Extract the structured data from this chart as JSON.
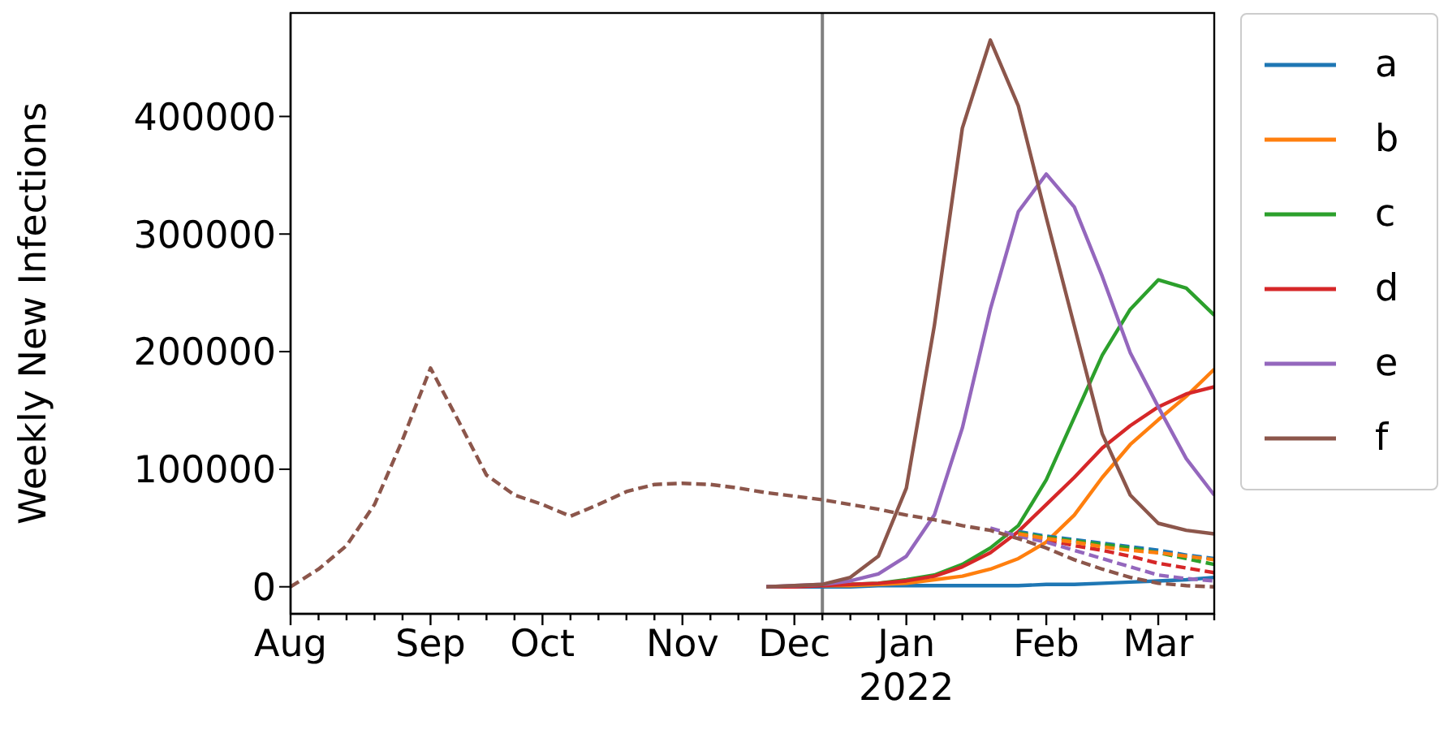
{
  "chart_data": {
    "type": "line",
    "ylabel": "Weekly New Infections",
    "x": [
      "2021-08-01",
      "2021-08-08",
      "2021-08-15",
      "2021-08-22",
      "2021-08-29",
      "2021-09-05",
      "2021-09-12",
      "2021-09-19",
      "2021-09-26",
      "2021-10-03",
      "2021-10-10",
      "2021-10-17",
      "2021-10-24",
      "2021-10-31",
      "2021-11-07",
      "2021-11-14",
      "2021-11-21",
      "2021-11-28",
      "2021-12-05",
      "2021-12-12",
      "2021-12-19",
      "2021-12-26",
      "2022-01-02",
      "2022-01-09",
      "2022-01-16",
      "2022-01-23",
      "2022-01-30",
      "2022-02-06",
      "2022-02-13",
      "2022-02-20",
      "2022-02-27",
      "2022-03-06",
      "2022-03-13",
      "2022-03-20"
    ],
    "xlim": [
      "2021-08-01",
      "2022-03-20"
    ],
    "xticks": [
      {
        "value": "2021-08-01",
        "label": "Aug"
      },
      {
        "value": "2021-08-08",
        "label": null
      },
      {
        "value": "2021-08-15",
        "label": null
      },
      {
        "value": "2021-08-22",
        "label": null
      },
      {
        "value": "2021-08-29",
        "label": null
      },
      {
        "value": "2021-09-05",
        "label": "Sep"
      },
      {
        "value": "2021-09-12",
        "label": null
      },
      {
        "value": "2021-09-19",
        "label": null
      },
      {
        "value": "2021-09-26",
        "label": null
      },
      {
        "value": "2021-10-03",
        "label": "Oct"
      },
      {
        "value": "2021-10-10",
        "label": null
      },
      {
        "value": "2021-10-17",
        "label": null
      },
      {
        "value": "2021-10-24",
        "label": null
      },
      {
        "value": "2021-10-31",
        "label": null
      },
      {
        "value": "2021-11-07",
        "label": "Nov"
      },
      {
        "value": "2021-11-14",
        "label": null
      },
      {
        "value": "2021-11-21",
        "label": null
      },
      {
        "value": "2021-11-28",
        "label": null
      },
      {
        "value": "2021-12-05",
        "label": "Dec"
      },
      {
        "value": "2021-12-12",
        "label": null
      },
      {
        "value": "2021-12-19",
        "label": null
      },
      {
        "value": "2021-12-26",
        "label": null
      },
      {
        "value": "2022-01-02",
        "label": "Jan\n2022"
      },
      {
        "value": "2022-01-09",
        "label": null
      },
      {
        "value": "2022-01-16",
        "label": null
      },
      {
        "value": "2022-01-23",
        "label": null
      },
      {
        "value": "2022-01-30",
        "label": null
      },
      {
        "value": "2022-02-06",
        "label": "Feb"
      },
      {
        "value": "2022-02-13",
        "label": null
      },
      {
        "value": "2022-02-20",
        "label": null
      },
      {
        "value": "2022-02-27",
        "label": null
      },
      {
        "value": "2022-03-06",
        "label": "Mar"
      },
      {
        "value": "2022-03-13",
        "label": null
      },
      {
        "value": "2022-03-20",
        "label": null
      }
    ],
    "ylim": [
      -23000,
      488000
    ],
    "yticks": [
      0,
      100000,
      200000,
      300000,
      400000
    ],
    "legend": "right",
    "ref_lines": [
      {
        "axis": "x",
        "value": "2021-12-12",
        "color": "#808080"
      }
    ],
    "series": [
      {
        "name": "a",
        "color": "#1f77b4",
        "values": [
          null,
          null,
          null,
          null,
          null,
          null,
          null,
          null,
          null,
          null,
          null,
          null,
          null,
          null,
          null,
          null,
          null,
          0,
          0,
          0,
          0,
          1000,
          1000,
          1000,
          1000,
          1000,
          1000,
          2000,
          2000,
          3000,
          4000,
          5000,
          6000,
          8000
        ]
      },
      {
        "name": "b",
        "color": "#ff7f0e",
        "values": [
          null,
          null,
          null,
          null,
          null,
          null,
          null,
          null,
          null,
          null,
          null,
          null,
          null,
          null,
          null,
          null,
          null,
          null,
          null,
          1000,
          1000,
          2000,
          3000,
          6000,
          9000,
          15000,
          24000,
          38000,
          61000,
          93000,
          121000,
          142000,
          162000,
          185000
        ]
      },
      {
        "name": "c",
        "color": "#2ca02c",
        "values": [
          null,
          null,
          null,
          null,
          null,
          null,
          null,
          null,
          null,
          null,
          null,
          null,
          null,
          null,
          null,
          null,
          null,
          null,
          null,
          null,
          2000,
          3000,
          6000,
          10000,
          19000,
          33000,
          52000,
          91000,
          144000,
          197000,
          236000,
          261000,
          254000,
          231000
        ]
      },
      {
        "name": "d",
        "color": "#d62728",
        "values": [
          null,
          null,
          null,
          null,
          null,
          null,
          null,
          null,
          null,
          null,
          null,
          null,
          null,
          null,
          null,
          null,
          null,
          0,
          0,
          1000,
          2000,
          3000,
          5000,
          9000,
          17000,
          29000,
          47000,
          70000,
          93000,
          118000,
          137000,
          153000,
          164000,
          170000
        ]
      },
      {
        "name": "e",
        "color": "#9467bd",
        "values": [
          null,
          null,
          null,
          null,
          null,
          null,
          null,
          null,
          null,
          null,
          null,
          null,
          null,
          null,
          null,
          null,
          null,
          0,
          1000,
          2000,
          5000,
          11000,
          26000,
          61000,
          135000,
          236000,
          319000,
          351000,
          323000,
          264000,
          199000,
          153000,
          109000,
          78000
        ]
      },
      {
        "name": "f",
        "color": "#8c564b",
        "values": [
          null,
          null,
          null,
          null,
          null,
          null,
          null,
          null,
          null,
          null,
          null,
          null,
          null,
          null,
          null,
          null,
          null,
          0,
          1000,
          2000,
          8000,
          26000,
          84000,
          222000,
          390000,
          465000,
          409000,
          314000,
          222000,
          130000,
          78000,
          54000,
          48000,
          45000
        ]
      },
      {
        "color": "#1f77b4",
        "line_style": "dashed",
        "values": [
          null,
          null,
          null,
          null,
          null,
          null,
          null,
          null,
          null,
          null,
          null,
          null,
          null,
          null,
          null,
          null,
          null,
          null,
          null,
          null,
          null,
          null,
          null,
          null,
          null,
          null,
          47000,
          43000,
          40000,
          37000,
          34000,
          31000,
          27000,
          24000
        ]
      },
      {
        "color": "#2ca02c",
        "line_style": "dashed",
        "values": [
          null,
          null,
          null,
          null,
          null,
          null,
          null,
          null,
          null,
          null,
          null,
          null,
          null,
          null,
          null,
          null,
          null,
          null,
          null,
          null,
          null,
          null,
          null,
          null,
          null,
          null,
          46000,
          42000,
          39000,
          36000,
          33000,
          29000,
          24000,
          19000
        ]
      },
      {
        "color": "#d62728",
        "line_style": "dashed",
        "values": [
          null,
          null,
          null,
          null,
          null,
          null,
          null,
          null,
          null,
          null,
          null,
          null,
          null,
          null,
          null,
          null,
          null,
          null,
          null,
          null,
          null,
          null,
          null,
          null,
          null,
          null,
          44000,
          40000,
          35000,
          31000,
          26000,
          20000,
          16000,
          12000
        ]
      },
      {
        "color": "#9467bd",
        "line_style": "dashed",
        "values": [
          null,
          null,
          null,
          null,
          null,
          null,
          null,
          null,
          null,
          null,
          null,
          null,
          null,
          null,
          null,
          null,
          null,
          null,
          null,
          null,
          null,
          null,
          null,
          null,
          null,
          50000,
          43000,
          38000,
          31000,
          24000,
          17000,
          10000,
          7000,
          5000
        ]
      },
      {
        "color": "#8c564b",
        "line_style": "dashed",
        "values": [
          0,
          15000,
          35000,
          70000,
          125000,
          186000,
          141000,
          95000,
          78000,
          70000,
          60000,
          70000,
          81000,
          87000,
          88000,
          87000,
          84000,
          80000,
          77000,
          74000,
          70000,
          66000,
          61000,
          57000,
          52000,
          48000,
          41000,
          33000,
          23000,
          15000,
          8000,
          3000,
          1000,
          0
        ]
      },
      {
        "color": "#ff7f0e",
        "line_style": "dashed",
        "values": [
          null,
          null,
          null,
          null,
          null,
          null,
          null,
          null,
          null,
          null,
          null,
          null,
          null,
          null,
          null,
          null,
          null,
          null,
          null,
          null,
          null,
          null,
          null,
          null,
          null,
          null,
          45000,
          41000,
          38000,
          34000,
          31000,
          29000,
          26000,
          23000
        ]
      }
    ]
  }
}
